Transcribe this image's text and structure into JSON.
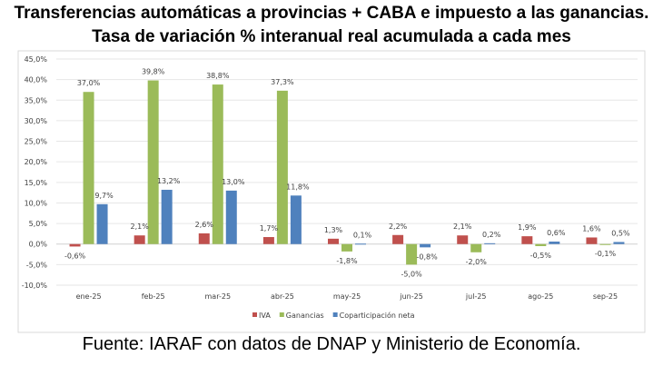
{
  "chart_data": {
    "type": "bar",
    "title": "Transferencias automáticas a provincias + CABA e impuesto a las ganancias.",
    "subtitle": "Tasa de variación % interanual real acumulada a cada mes",
    "categories": [
      "ene-25",
      "feb-25",
      "mar-25",
      "abr-25",
      "may-25",
      "jun-25",
      "jul-25",
      "ago-25",
      "sep-25"
    ],
    "series": [
      {
        "name": "IVA",
        "color": "#C0504D",
        "values": [
          -0.6,
          2.1,
          2.6,
          1.7,
          1.3,
          2.2,
          2.1,
          1.9,
          1.6
        ]
      },
      {
        "name": "Ganancias",
        "color": "#9BBB59",
        "values": [
          37.0,
          39.8,
          38.8,
          37.3,
          -1.8,
          -5.0,
          -2.0,
          -0.5,
          -0.1
        ]
      },
      {
        "name": "Coparticipación neta",
        "color": "#4F81BD",
        "values": [
          9.7,
          13.2,
          13.0,
          11.8,
          0.1,
          -0.8,
          0.2,
          0.6,
          0.5
        ]
      }
    ],
    "yticks": [
      "45,0%",
      "40,0%",
      "35,0%",
      "30,0%",
      "25,0%",
      "20,0%",
      "15,0%",
      "10,0%",
      "5,0%",
      "0,0%",
      "-5,0%",
      "-10,0%"
    ],
    "ylim": [
      -10,
      45
    ],
    "grid": true,
    "legend": "bottom",
    "data_labels": true
  },
  "source": "Fuente: IARAF con datos de DNAP y Ministerio de Economía."
}
